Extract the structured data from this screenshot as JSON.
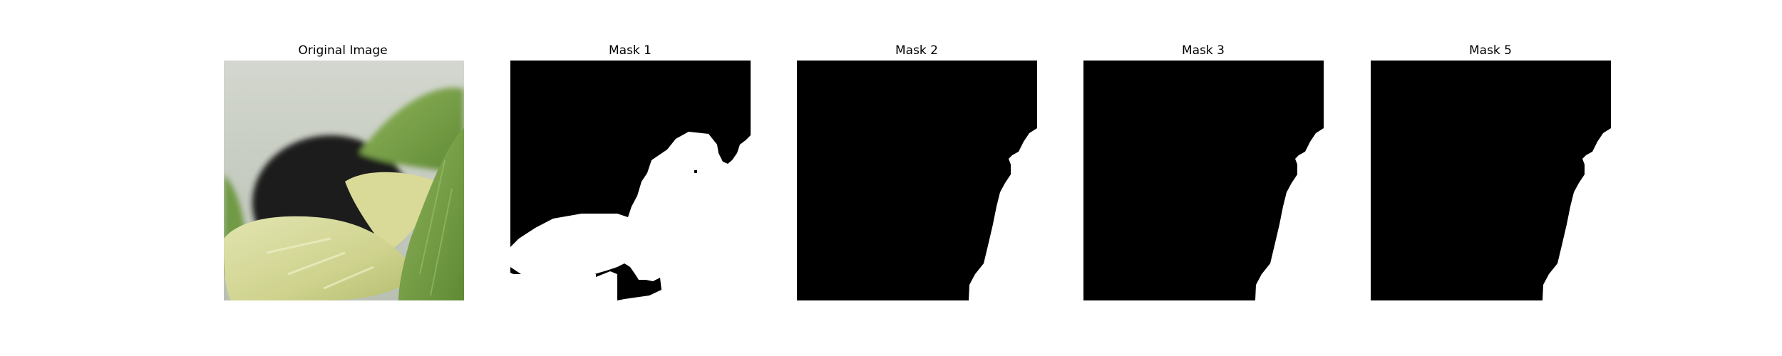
{
  "panels": [
    {
      "title": "Original Image",
      "kind": "photo"
    },
    {
      "title": "Mask 1",
      "kind": "mask"
    },
    {
      "title": "Mask 2",
      "kind": "mask"
    },
    {
      "title": "Mask 3",
      "kind": "mask"
    },
    {
      "title": "Mask 5",
      "kind": "mask"
    }
  ],
  "colors": {
    "background": "#ffffff",
    "mask_background": "#000000",
    "mask_foreground": "#ffffff",
    "photo_wall": "#c9cdc5",
    "photo_dark_object": "#1b1a18",
    "photo_leaf_green": "#7fa64a",
    "photo_leaf_pale": "#d8dd9e"
  }
}
